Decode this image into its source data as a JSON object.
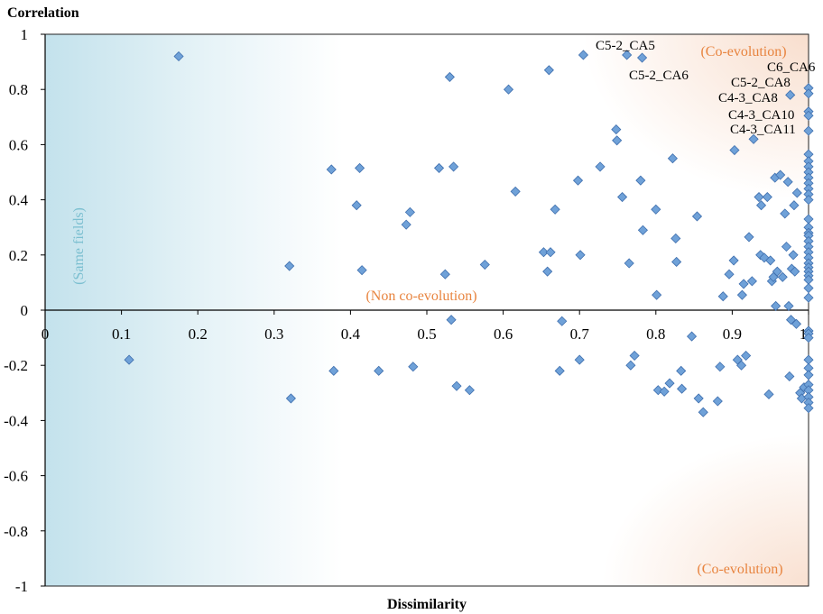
{
  "chart_data": {
    "type": "scatter",
    "title": "",
    "xlabel": "Dissimilarity",
    "ylabel": "Correlation",
    "xlim": [
      0,
      1
    ],
    "ylim": [
      -1,
      1
    ],
    "x_ticks": [
      "0",
      "0.1",
      "0.2",
      "0.3",
      "0.4",
      "0.5",
      "0.6",
      "0.7",
      "0.8",
      "0.9",
      "1"
    ],
    "y_ticks": [
      "1",
      "0.8",
      "0.6",
      "0.4",
      "0.2",
      "0",
      "-0.2",
      "-0.4",
      "-0.6",
      "-0.8",
      "-1"
    ],
    "grid": false,
    "legend": "none",
    "marker": "diamond",
    "colors": {
      "marker_fill": "#6fa1d8",
      "marker_stroke": "#3f6fae",
      "same_fields": "#b9dde9",
      "co_evolution": "#f6d3bd",
      "label_blue": "#7bbfd0",
      "label_orange": "#e8843f"
    },
    "regions": [
      {
        "label": "(Same fields)",
        "color": "#7bbfd0"
      },
      {
        "label": "(Non co-evolution)",
        "color": "#e8843f"
      },
      {
        "label": "(Co-evolution)",
        "color": "#e8843f",
        "position": "top-right"
      },
      {
        "label": "(Co-evolution)",
        "color": "#e8843f",
        "position": "bottom-right"
      }
    ],
    "annotations": [
      {
        "text": "C5-2_CA5",
        "x": 0.76,
        "y": 0.93
      },
      {
        "text": "C5-2_CA6",
        "x": 0.78,
        "y": 0.91
      },
      {
        "text": "C6_CA6",
        "x": 1.0,
        "y": 0.8
      },
      {
        "text": "C5-2_CA8",
        "x": 0.99,
        "y": 0.78
      },
      {
        "text": "C4-3_CA8",
        "x": 0.97,
        "y": 0.78
      },
      {
        "text": "C4-3_CA10",
        "x": 1.0,
        "y": 0.71
      },
      {
        "text": "C4-3_CA11",
        "x": 1.0,
        "y": 0.65
      }
    ],
    "points": [
      {
        "x": 0.11,
        "y": -0.18
      },
      {
        "x": 0.175,
        "y": 0.92
      },
      {
        "x": 0.32,
        "y": 0.16
      },
      {
        "x": 0.322,
        "y": -0.32
      },
      {
        "x": 0.375,
        "y": 0.51
      },
      {
        "x": 0.378,
        "y": -0.22
      },
      {
        "x": 0.408,
        "y": 0.38
      },
      {
        "x": 0.412,
        "y": 0.515
      },
      {
        "x": 0.415,
        "y": 0.145
      },
      {
        "x": 0.437,
        "y": -0.22
      },
      {
        "x": 0.473,
        "y": 0.31
      },
      {
        "x": 0.478,
        "y": 0.355
      },
      {
        "x": 0.482,
        "y": -0.205
      },
      {
        "x": 0.516,
        "y": 0.515
      },
      {
        "x": 0.524,
        "y": 0.13
      },
      {
        "x": 0.53,
        "y": 0.845
      },
      {
        "x": 0.532,
        "y": -0.035
      },
      {
        "x": 0.535,
        "y": 0.52
      },
      {
        "x": 0.539,
        "y": -0.275
      },
      {
        "x": 0.556,
        "y": -0.29
      },
      {
        "x": 0.576,
        "y": 0.165
      },
      {
        "x": 0.607,
        "y": 0.8
      },
      {
        "x": 0.616,
        "y": 0.43
      },
      {
        "x": 0.653,
        "y": 0.21
      },
      {
        "x": 0.658,
        "y": 0.14
      },
      {
        "x": 0.66,
        "y": 0.87
      },
      {
        "x": 0.662,
        "y": 0.21
      },
      {
        "x": 0.668,
        "y": 0.365
      },
      {
        "x": 0.674,
        "y": -0.22
      },
      {
        "x": 0.677,
        "y": -0.04
      },
      {
        "x": 0.698,
        "y": 0.47
      },
      {
        "x": 0.701,
        "y": 0.2
      },
      {
        "x": 0.7,
        "y": -0.18
      },
      {
        "x": 0.705,
        "y": 0.925
      },
      {
        "x": 0.727,
        "y": 0.52
      },
      {
        "x": 0.748,
        "y": 0.655
      },
      {
        "x": 0.749,
        "y": 0.615
      },
      {
        "x": 0.756,
        "y": 0.41
      },
      {
        "x": 0.762,
        "y": 0.925
      },
      {
        "x": 0.765,
        "y": 0.17
      },
      {
        "x": 0.767,
        "y": -0.2
      },
      {
        "x": 0.772,
        "y": -0.165
      },
      {
        "x": 0.78,
        "y": 0.47
      },
      {
        "x": 0.782,
        "y": 0.915
      },
      {
        "x": 0.783,
        "y": 0.29
      },
      {
        "x": 0.8,
        "y": 0.365
      },
      {
        "x": 0.801,
        "y": 0.055
      },
      {
        "x": 0.803,
        "y": -0.29
      },
      {
        "x": 0.811,
        "y": -0.295
      },
      {
        "x": 0.818,
        "y": -0.265
      },
      {
        "x": 0.822,
        "y": 0.55
      },
      {
        "x": 0.826,
        "y": 0.26
      },
      {
        "x": 0.827,
        "y": 0.175
      },
      {
        "x": 0.833,
        "y": -0.22
      },
      {
        "x": 0.834,
        "y": -0.285
      },
      {
        "x": 0.847,
        "y": -0.095
      },
      {
        "x": 0.854,
        "y": 0.34
      },
      {
        "x": 0.856,
        "y": -0.32
      },
      {
        "x": 0.862,
        "y": -0.37
      },
      {
        "x": 0.881,
        "y": -0.33
      },
      {
        "x": 0.884,
        "y": -0.205
      },
      {
        "x": 0.888,
        "y": 0.05
      },
      {
        "x": 0.896,
        "y": 0.13
      },
      {
        "x": 0.902,
        "y": 0.18
      },
      {
        "x": 0.903,
        "y": 0.58
      },
      {
        "x": 0.907,
        "y": -0.18
      },
      {
        "x": 0.912,
        "y": -0.2
      },
      {
        "x": 0.913,
        "y": 0.055
      },
      {
        "x": 0.915,
        "y": 0.095
      },
      {
        "x": 0.918,
        "y": -0.165
      },
      {
        "x": 0.922,
        "y": 0.265
      },
      {
        "x": 0.926,
        "y": 0.105
      },
      {
        "x": 0.928,
        "y": 0.62
      },
      {
        "x": 0.935,
        "y": 0.41
      },
      {
        "x": 0.937,
        "y": 0.2
      },
      {
        "x": 0.938,
        "y": 0.38
      },
      {
        "x": 0.942,
        "y": 0.19
      },
      {
        "x": 0.946,
        "y": 0.41
      },
      {
        "x": 0.948,
        "y": -0.305
      },
      {
        "x": 0.95,
        "y": 0.18
      },
      {
        "x": 0.952,
        "y": 0.105
      },
      {
        "x": 0.954,
        "y": 0.12
      },
      {
        "x": 0.956,
        "y": 0.48
      },
      {
        "x": 0.957,
        "y": 0.015
      },
      {
        "x": 0.959,
        "y": 0.14
      },
      {
        "x": 0.963,
        "y": 0.49
      },
      {
        "x": 0.966,
        "y": 0.12
      },
      {
        "x": 0.969,
        "y": 0.35
      },
      {
        "x": 0.971,
        "y": 0.23
      },
      {
        "x": 0.973,
        "y": 0.465
      },
      {
        "x": 0.974,
        "y": 0.015
      },
      {
        "x": 0.975,
        "y": -0.24
      },
      {
        "x": 0.976,
        "y": 0.78
      },
      {
        "x": 0.977,
        "y": -0.035
      },
      {
        "x": 0.978,
        "y": 0.15
      },
      {
        "x": 0.98,
        "y": 0.2
      },
      {
        "x": 0.981,
        "y": 0.38
      },
      {
        "x": 0.982,
        "y": 0.14
      },
      {
        "x": 0.984,
        "y": -0.05
      },
      {
        "x": 0.985,
        "y": 0.425
      },
      {
        "x": 0.989,
        "y": -0.3
      },
      {
        "x": 0.991,
        "y": -0.32
      },
      {
        "x": 0.994,
        "y": -0.28
      },
      {
        "x": 1.0,
        "y": 0.805
      },
      {
        "x": 1.0,
        "y": 0.785
      },
      {
        "x": 1.0,
        "y": 0.72
      },
      {
        "x": 1.0,
        "y": 0.705
      },
      {
        "x": 1.0,
        "y": 0.65
      },
      {
        "x": 1.0,
        "y": 0.565
      },
      {
        "x": 1.0,
        "y": 0.54
      },
      {
        "x": 1.0,
        "y": 0.52
      },
      {
        "x": 1.0,
        "y": 0.5
      },
      {
        "x": 1.0,
        "y": 0.48
      },
      {
        "x": 1.0,
        "y": 0.46
      },
      {
        "x": 1.0,
        "y": 0.44
      },
      {
        "x": 1.0,
        "y": 0.42
      },
      {
        "x": 1.0,
        "y": 0.4
      },
      {
        "x": 1.0,
        "y": 0.33
      },
      {
        "x": 1.0,
        "y": 0.3
      },
      {
        "x": 1.0,
        "y": 0.28
      },
      {
        "x": 1.0,
        "y": 0.27
      },
      {
        "x": 1.0,
        "y": 0.25
      },
      {
        "x": 1.0,
        "y": 0.23
      },
      {
        "x": 1.0,
        "y": 0.21
      },
      {
        "x": 1.0,
        "y": 0.19
      },
      {
        "x": 1.0,
        "y": 0.17
      },
      {
        "x": 1.0,
        "y": 0.155
      },
      {
        "x": 1.0,
        "y": 0.14
      },
      {
        "x": 1.0,
        "y": 0.125
      },
      {
        "x": 1.0,
        "y": 0.11
      },
      {
        "x": 1.0,
        "y": 0.08
      },
      {
        "x": 1.0,
        "y": 0.045
      },
      {
        "x": 1.0,
        "y": -0.075
      },
      {
        "x": 1.0,
        "y": -0.085
      },
      {
        "x": 1.0,
        "y": -0.1
      },
      {
        "x": 1.0,
        "y": -0.18
      },
      {
        "x": 1.0,
        "y": -0.21
      },
      {
        "x": 1.0,
        "y": -0.235
      },
      {
        "x": 1.0,
        "y": -0.27
      },
      {
        "x": 1.0,
        "y": -0.29
      },
      {
        "x": 1.0,
        "y": -0.315
      },
      {
        "x": 1.0,
        "y": -0.335
      },
      {
        "x": 1.0,
        "y": -0.355
      }
    ]
  }
}
